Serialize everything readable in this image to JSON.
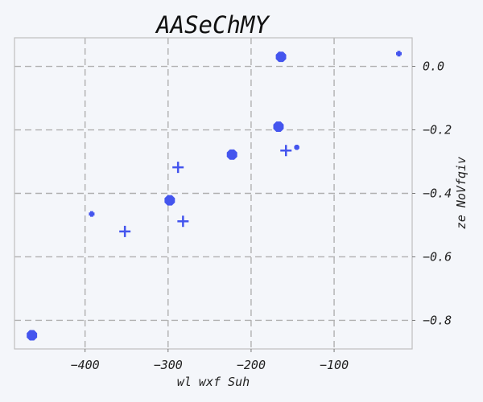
{
  "chart_data": {
    "type": "scatter",
    "title": "AASeChMY",
    "xlabel": "wl wxf Suh",
    "ylabel": "ze NoVfqiv",
    "xlim": [
      -485,
      -6
    ],
    "ylim": [
      -0.89,
      0.09
    ],
    "x_ticks": [
      -400,
      -300,
      -200,
      -100
    ],
    "x_tick_labels": [
      "−400",
      "−300",
      "−200",
      "−100"
    ],
    "y_ticks": [
      0.0,
      -0.2,
      -0.4,
      -0.6,
      -0.8
    ],
    "y_tick_labels": [
      "0.0",
      "−0.2",
      "−0.4",
      "−0.6",
      "−0.8"
    ],
    "y_axis_side": "right",
    "grid": true,
    "marker_color": "#4455ee",
    "points": [
      {
        "x": -164,
        "y": 0.03,
        "marker": "octagon",
        "size": "large"
      },
      {
        "x": -22,
        "y": 0.04,
        "marker": "plus-filled",
        "size": "small"
      },
      {
        "x": -167,
        "y": -0.19,
        "marker": "octagon",
        "size": "large"
      },
      {
        "x": -145,
        "y": -0.255,
        "marker": "octagon",
        "size": "small"
      },
      {
        "x": -158,
        "y": -0.265,
        "marker": "plus",
        "size": "medium"
      },
      {
        "x": -223,
        "y": -0.278,
        "marker": "octagon",
        "size": "large"
      },
      {
        "x": -288,
        "y": -0.318,
        "marker": "plus",
        "size": "medium"
      },
      {
        "x": -298,
        "y": -0.422,
        "marker": "octagon",
        "size": "large"
      },
      {
        "x": -392,
        "y": -0.465,
        "marker": "plus-filled",
        "size": "small"
      },
      {
        "x": -282,
        "y": -0.488,
        "marker": "plus",
        "size": "medium"
      },
      {
        "x": -352,
        "y": -0.52,
        "marker": "plus",
        "size": "medium"
      },
      {
        "x": -464,
        "y": -0.847,
        "marker": "octagon",
        "size": "large"
      }
    ]
  }
}
